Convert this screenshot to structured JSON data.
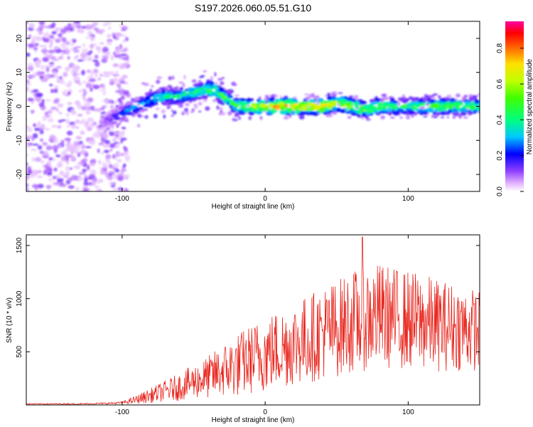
{
  "title": "S197.2026.060.05.51.G10",
  "colors": {
    "snr_line": "#e8261e",
    "background": "#ffffff",
    "axis": "#000000"
  },
  "chart_data": [
    {
      "type": "heatmap",
      "name": "spectrogram",
      "xlabel": "Height of straight line (km)",
      "ylabel": "Frequency (Hz)",
      "xlim": [
        -167,
        150
      ],
      "ylim": [
        -25,
        25
      ],
      "xticks": [
        -100,
        0,
        100
      ],
      "yticks": [
        -20,
        -10,
        0,
        10,
        20
      ],
      "grid": false,
      "noise_region_x": [
        -167,
        -100
      ],
      "ridge": {
        "x": [
          -115,
          -100,
          -90,
          -80,
          -70,
          -60,
          -50,
          -40,
          -35,
          -30,
          -25,
          -20,
          -10,
          0,
          10,
          20,
          30,
          40,
          50,
          60,
          70,
          80,
          90,
          100,
          110,
          120,
          130,
          140,
          150
        ],
        "y": [
          -5,
          -2,
          0,
          2,
          3,
          3,
          4,
          5,
          5,
          3,
          2,
          0,
          0,
          0,
          0,
          0,
          0,
          0,
          1,
          0,
          -1,
          0,
          0,
          0,
          0,
          0,
          0,
          0,
          0
        ],
        "peak_amplitude": [
          0.1,
          0.25,
          0.35,
          0.4,
          0.45,
          0.45,
          0.5,
          0.55,
          0.55,
          0.6,
          0.5,
          0.6,
          0.7,
          0.75,
          0.85,
          0.85,
          0.85,
          0.85,
          0.75,
          0.7,
          0.6,
          0.6,
          0.55,
          0.5,
          0.55,
          0.6,
          0.6,
          0.55,
          0.55
        ]
      },
      "colorbar": {
        "label": "Normalized spectral amplitude",
        "ticks": [
          0.0,
          0.2,
          0.4,
          0.6,
          0.8
        ],
        "range": [
          0,
          0.95
        ]
      }
    },
    {
      "type": "line",
      "name": "snr",
      "xlabel": "Height of straight line (km)",
      "ylabel": "SNR (10 * v/v)",
      "xlim": [
        -167,
        150
      ],
      "ylim": [
        0,
        1600
      ],
      "xticks": [
        -100,
        0,
        100
      ],
      "yticks": [
        500,
        1000,
        1500
      ],
      "grid": false,
      "series": [
        {
          "name": "SNR",
          "x": [
            -167,
            -150,
            -130,
            -110,
            -100,
            -90,
            -80,
            -70,
            -60,
            -50,
            -40,
            -30,
            -20,
            -10,
            0,
            10,
            20,
            30,
            40,
            50,
            60,
            70,
            80,
            90,
            100,
            110,
            120,
            130,
            140,
            150
          ],
          "mean": [
            10,
            10,
            10,
            15,
            20,
            50,
            90,
            130,
            170,
            220,
            260,
            320,
            370,
            430,
            480,
            530,
            580,
            620,
            680,
            720,
            780,
            820,
            840,
            820,
            800,
            780,
            750,
            740,
            720,
            700
          ],
          "amp": [
            5,
            5,
            6,
            8,
            12,
            40,
            70,
            100,
            130,
            160,
            200,
            250,
            300,
            330,
            360,
            380,
            400,
            420,
            440,
            460,
            480,
            500,
            500,
            480,
            470,
            460,
            440,
            420,
            400,
            380
          ],
          "peak_max": 1580,
          "peak_max_x": 68
        }
      ]
    }
  ]
}
